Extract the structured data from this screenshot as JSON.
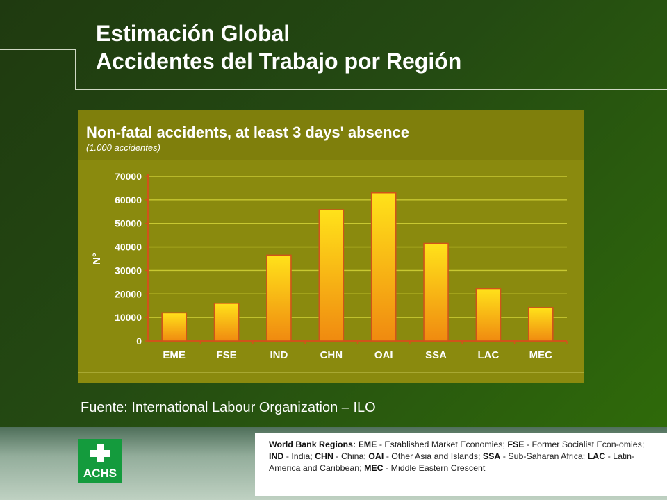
{
  "slide": {
    "title_line1": "Estimación Global",
    "title_line2": "Accidentes del Trabajo por Región",
    "source": "Fuente: International Labour Organization – ILO",
    "logo_text": "ACHS"
  },
  "legend": {
    "lead": "World Bank Regions:",
    "entries": [
      {
        "code": "EME",
        "desc": " - Established Market Economies; "
      },
      {
        "code": "FSE",
        "desc": " - Former Socialist Econ-omies; "
      },
      {
        "code": "IND",
        "desc": " - India; "
      },
      {
        "code": "CHN",
        "desc": " - China; "
      },
      {
        "code": "OAI",
        "desc": " - Other Asia and Islands; "
      },
      {
        "code": "SSA",
        "desc": " - Sub-Saharan Africa; "
      },
      {
        "code": "LAC",
        "desc": " - Latin-America and Caribbean; "
      },
      {
        "code": "MEC",
        "desc": " - Middle Eastern Crescent"
      }
    ]
  },
  "colors": {
    "panel": "#8a8a0e",
    "grid": "#c8c832",
    "axis": "#d0541a",
    "bar_top": "#ffe21a",
    "bar_bottom": "#f08a10"
  },
  "chart_data": {
    "type": "bar",
    "title": "Non-fatal accidents, at least 3 days' absence",
    "subtitle": "(1.000 accidentes)",
    "ylabel": "N°",
    "xlabel": "",
    "categories": [
      "EME",
      "FSE",
      "IND",
      "CHN",
      "OAI",
      "SSA",
      "LAC",
      "MEC"
    ],
    "values": [
      12000,
      16000,
      36500,
      55800,
      63000,
      41500,
      22300,
      14200
    ],
    "ylim": [
      0,
      70000
    ],
    "yticks": [
      0,
      10000,
      20000,
      30000,
      40000,
      50000,
      60000,
      70000
    ],
    "grid": true
  }
}
